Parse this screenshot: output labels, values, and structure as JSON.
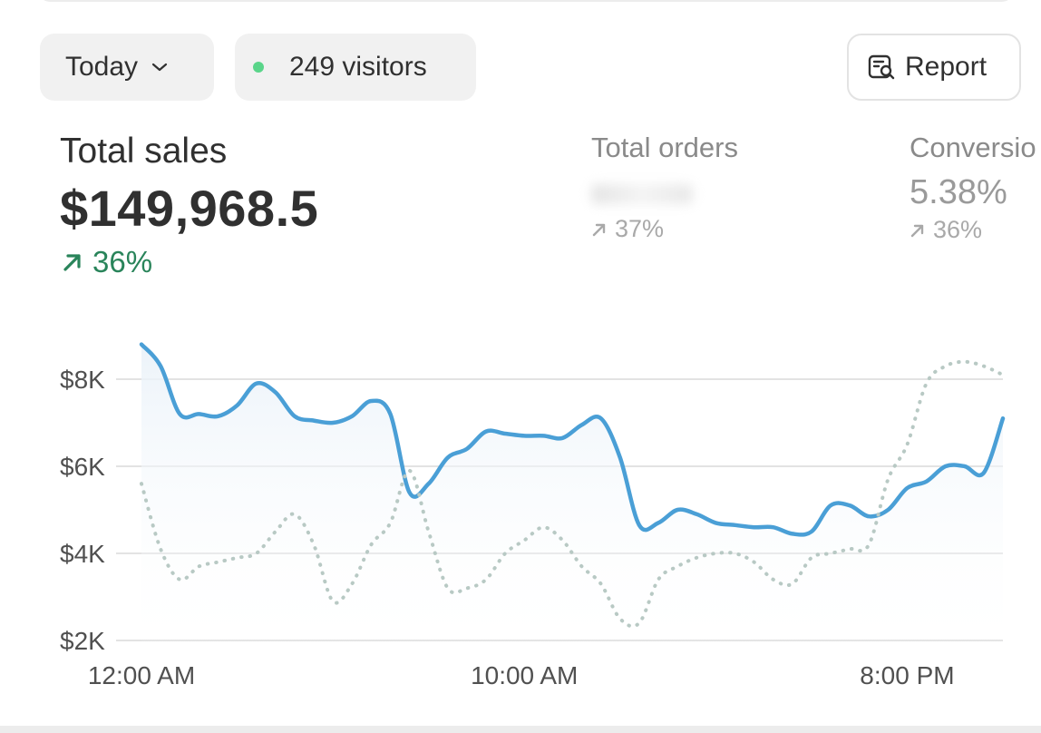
{
  "filters": {
    "date_label": "Today",
    "visitors_label": "249 visitors"
  },
  "actions": {
    "report_label": "Report"
  },
  "metrics": {
    "sales": {
      "label": "Total sales",
      "value": "$149,968.5",
      "change": "36%"
    },
    "orders": {
      "label": "Total orders",
      "change": "37%"
    },
    "conversion": {
      "label": "Conversio",
      "value": "5.38%",
      "change": "36%"
    }
  },
  "colors": {
    "primary_line": "#4a9fd6",
    "comparison_line": "#b8c9c4",
    "positive": "#29845a",
    "status_dot": "#5ad58a"
  },
  "chart_data": {
    "type": "line",
    "y_tick_labels": [
      "$2K",
      "$4K",
      "$6K",
      "$8K"
    ],
    "y_ticks": [
      2000,
      4000,
      6000,
      8000
    ],
    "ylim": [
      1500,
      9000
    ],
    "x_tick_labels": [
      "12:00 AM",
      "10:00 AM",
      "8:00 PM"
    ],
    "x_tick_positions": [
      0,
      10,
      20
    ],
    "xlim": [
      0,
      22.5
    ],
    "grid": true,
    "series": [
      {
        "style": "solid",
        "x": [
          0,
          0.5,
          1,
          1.5,
          2,
          2.5,
          3,
          3.5,
          4,
          4.5,
          5,
          5.5,
          6,
          6.5,
          7,
          7.5,
          8,
          8.5,
          9,
          9.5,
          10,
          10.5,
          11,
          11.5,
          12,
          12.5,
          13,
          13.5,
          14,
          14.5,
          15,
          15.5,
          16,
          16.5,
          17,
          17.5,
          18,
          18.5,
          19,
          19.5,
          20,
          20.5,
          21,
          21.5,
          22,
          22.5
        ],
        "values": [
          8800,
          8300,
          7200,
          7200,
          7150,
          7400,
          7900,
          7700,
          7150,
          7050,
          7000,
          7150,
          7500,
          7200,
          5400,
          5600,
          6200,
          6400,
          6800,
          6750,
          6700,
          6700,
          6650,
          6950,
          7100,
          6200,
          4650,
          4700,
          5000,
          4900,
          4700,
          4650,
          4600,
          4600,
          4450,
          4500,
          5100,
          5100,
          4850,
          5000,
          5500,
          5650,
          6000,
          6000,
          5850,
          7100
        ]
      },
      {
        "style": "dotted",
        "x": [
          0,
          0.5,
          1,
          1.5,
          2,
          2.5,
          3,
          3.5,
          4,
          4.5,
          5,
          5.5,
          6,
          6.5,
          7,
          7.5,
          8,
          8.5,
          9,
          9.5,
          10,
          10.5,
          11,
          11.5,
          12,
          12.5,
          13,
          13.5,
          14,
          14.5,
          15,
          15.5,
          16,
          16.5,
          17,
          17.5,
          18,
          18.5,
          19,
          19.5,
          20,
          20.5,
          21,
          21.5,
          22,
          22.5
        ],
        "values": [
          5600,
          4100,
          3400,
          3700,
          3800,
          3900,
          4000,
          4500,
          4900,
          4200,
          2900,
          3300,
          4200,
          4700,
          5900,
          4500,
          3200,
          3200,
          3400,
          4000,
          4300,
          4600,
          4300,
          3700,
          3300,
          2500,
          2400,
          3400,
          3700,
          3900,
          4000,
          4000,
          3800,
          3400,
          3300,
          3900,
          4000,
          4100,
          4200,
          5700,
          6500,
          7900,
          8300,
          8400,
          8300,
          8100
        ]
      }
    ]
  }
}
